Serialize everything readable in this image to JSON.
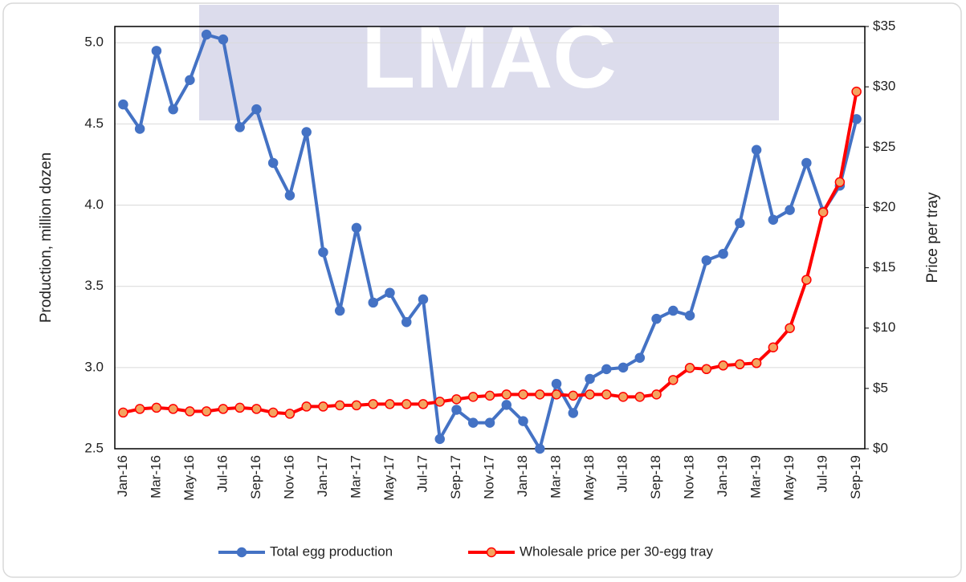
{
  "chart_data": {
    "type": "line",
    "watermark": "LMAC",
    "y_axis_label": "Production, million dozen",
    "y2_axis_label": "Price per tray",
    "categories": [
      "Jan-16",
      null,
      "Mar-16",
      null,
      "May-16",
      null,
      "Jul-16",
      null,
      "Sep-16",
      null,
      "Nov-16",
      null,
      "Jan-17",
      null,
      "Mar-17",
      null,
      "May-17",
      null,
      "Jul-17",
      null,
      "Sep-17",
      null,
      "Nov-17",
      null,
      "Jan-18",
      null,
      "Mar-18",
      null,
      "May-18",
      null,
      "Jul-18",
      null,
      "Sep-18",
      null,
      "Nov-18",
      null,
      "Jan-19",
      null,
      "Mar-19",
      null,
      "May-19",
      null,
      "Jul-19",
      null,
      "Sep-19"
    ],
    "series": [
      {
        "name": "Total egg production",
        "color": "#4472c4",
        "marker_fill": "#4472c4",
        "values": [
          4.62,
          4.47,
          4.95,
          4.59,
          4.77,
          5.05,
          5.02,
          4.48,
          4.59,
          4.26,
          4.06,
          4.45,
          3.71,
          3.35,
          3.86,
          3.4,
          3.46,
          3.28,
          3.42,
          2.56,
          2.74,
          2.66,
          2.66,
          2.77,
          2.67,
          2.5,
          2.9,
          2.72,
          2.93,
          2.99,
          3.0,
          3.06,
          3.3,
          3.35,
          3.32,
          3.66,
          3.7,
          3.89,
          4.34,
          3.91,
          3.97,
          4.26,
          3.96,
          4.12,
          4.53
        ]
      },
      {
        "name": "Wholesale price per 30-egg tray",
        "color": "#ff0000",
        "marker_fill": "#f4a460",
        "axis": "y2",
        "values": [
          3.0,
          3.3,
          3.4,
          3.3,
          3.1,
          3.1,
          3.3,
          3.4,
          3.3,
          3.0,
          2.9,
          3.5,
          3.5,
          3.6,
          3.6,
          3.7,
          3.7,
          3.7,
          3.7,
          3.9,
          4.1,
          4.3,
          4.4,
          4.5,
          4.5,
          4.5,
          4.5,
          4.4,
          4.5,
          4.5,
          4.3,
          4.3,
          4.5,
          5.7,
          6.7,
          6.6,
          6.9,
          7.0,
          7.1,
          8.4,
          10.0,
          14.0,
          19.6,
          22.1,
          29.6
        ]
      }
    ],
    "ylim": [
      2.5,
      5.1
    ],
    "yticks": [
      {
        "value": 2.5,
        "label": "2.5"
      },
      {
        "value": 3,
        "label": "3.0"
      },
      {
        "value": 3.5,
        "label": "3.5"
      },
      {
        "value": 4,
        "label": "4.0"
      },
      {
        "value": 4.5,
        "label": "4.5"
      },
      {
        "value": 5,
        "label": "5.0"
      }
    ],
    "y2lim": [
      0,
      35
    ],
    "y2ticks": [
      {
        "value": 0,
        "label": "$0"
      },
      {
        "value": 5,
        "label": "$5"
      },
      {
        "value": 10,
        "label": "$10"
      },
      {
        "value": 15,
        "label": "$15"
      },
      {
        "value": 20,
        "label": "$20"
      },
      {
        "value": 25,
        "label": "$25"
      },
      {
        "value": 30,
        "label": "$30"
      },
      {
        "value": 35,
        "label": "$35"
      }
    ],
    "grid": true,
    "legend": "bottom"
  }
}
